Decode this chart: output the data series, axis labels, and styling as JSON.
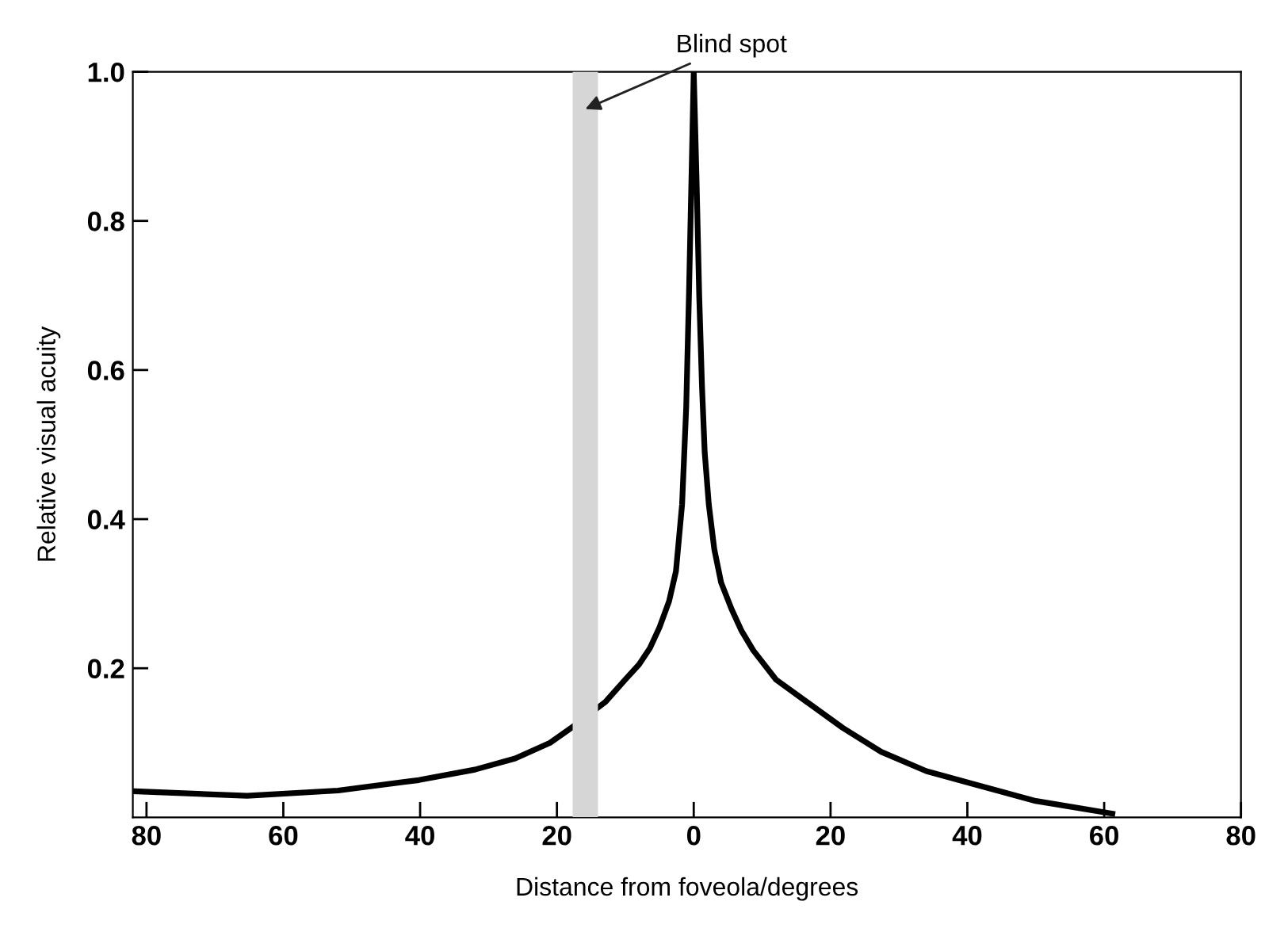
{
  "chart_data": {
    "type": "line",
    "xlabel": "Distance from foveola/degrees",
    "ylabel": "Relative visual acuity",
    "x": [
      -81.7,
      -65.3,
      -52,
      -40.2,
      -32,
      -26.1,
      -21,
      -17.3,
      -12.9,
      -10,
      -8,
      -6.4,
      -5,
      -3.6,
      -2.6,
      -1.7,
      -1.1,
      -0.7,
      -0.3,
      0,
      0.4,
      0.8,
      1.2,
      1.6,
      2.2,
      3,
      4,
      5.5,
      7,
      8.7,
      12,
      16.5,
      21.8,
      27.4,
      34,
      41.6,
      50,
      61.2
    ],
    "series": [
      {
        "color": "#000000",
        "values": [
          0.035,
          0.029,
          0.036,
          0.05,
          0.064,
          0.079,
          0.1,
          0.124,
          0.155,
          0.185,
          0.205,
          0.227,
          0.255,
          0.29,
          0.33,
          0.42,
          0.55,
          0.7,
          0.87,
          1.0,
          0.86,
          0.7,
          0.58,
          0.49,
          0.42,
          0.36,
          0.315,
          0.28,
          0.25,
          0.224,
          0.185,
          0.155,
          0.12,
          0.088,
          0.062,
          0.043,
          0.022,
          0.005
        ]
      }
    ],
    "xlim": [
      -82,
      80
    ],
    "xticks": [
      {
        "value": -80,
        "label": "80"
      },
      {
        "value": -60,
        "label": "60"
      },
      {
        "value": -40,
        "label": "40"
      },
      {
        "value": -20,
        "label": "20"
      },
      0,
      20,
      40,
      60,
      80
    ],
    "ylim": [
      0,
      1.0
    ],
    "yticks": [
      0.2,
      0.4,
      0.6,
      0.8,
      {
        "value": 1.0,
        "label": "1.0"
      }
    ],
    "bands": [
      {
        "axis": "x",
        "from": -17.7,
        "to": -14,
        "color": "#d6d6d6",
        "label": "Blind spot"
      }
    ],
    "grid": false,
    "legend": false,
    "marker": "none",
    "line_style": "solid"
  }
}
